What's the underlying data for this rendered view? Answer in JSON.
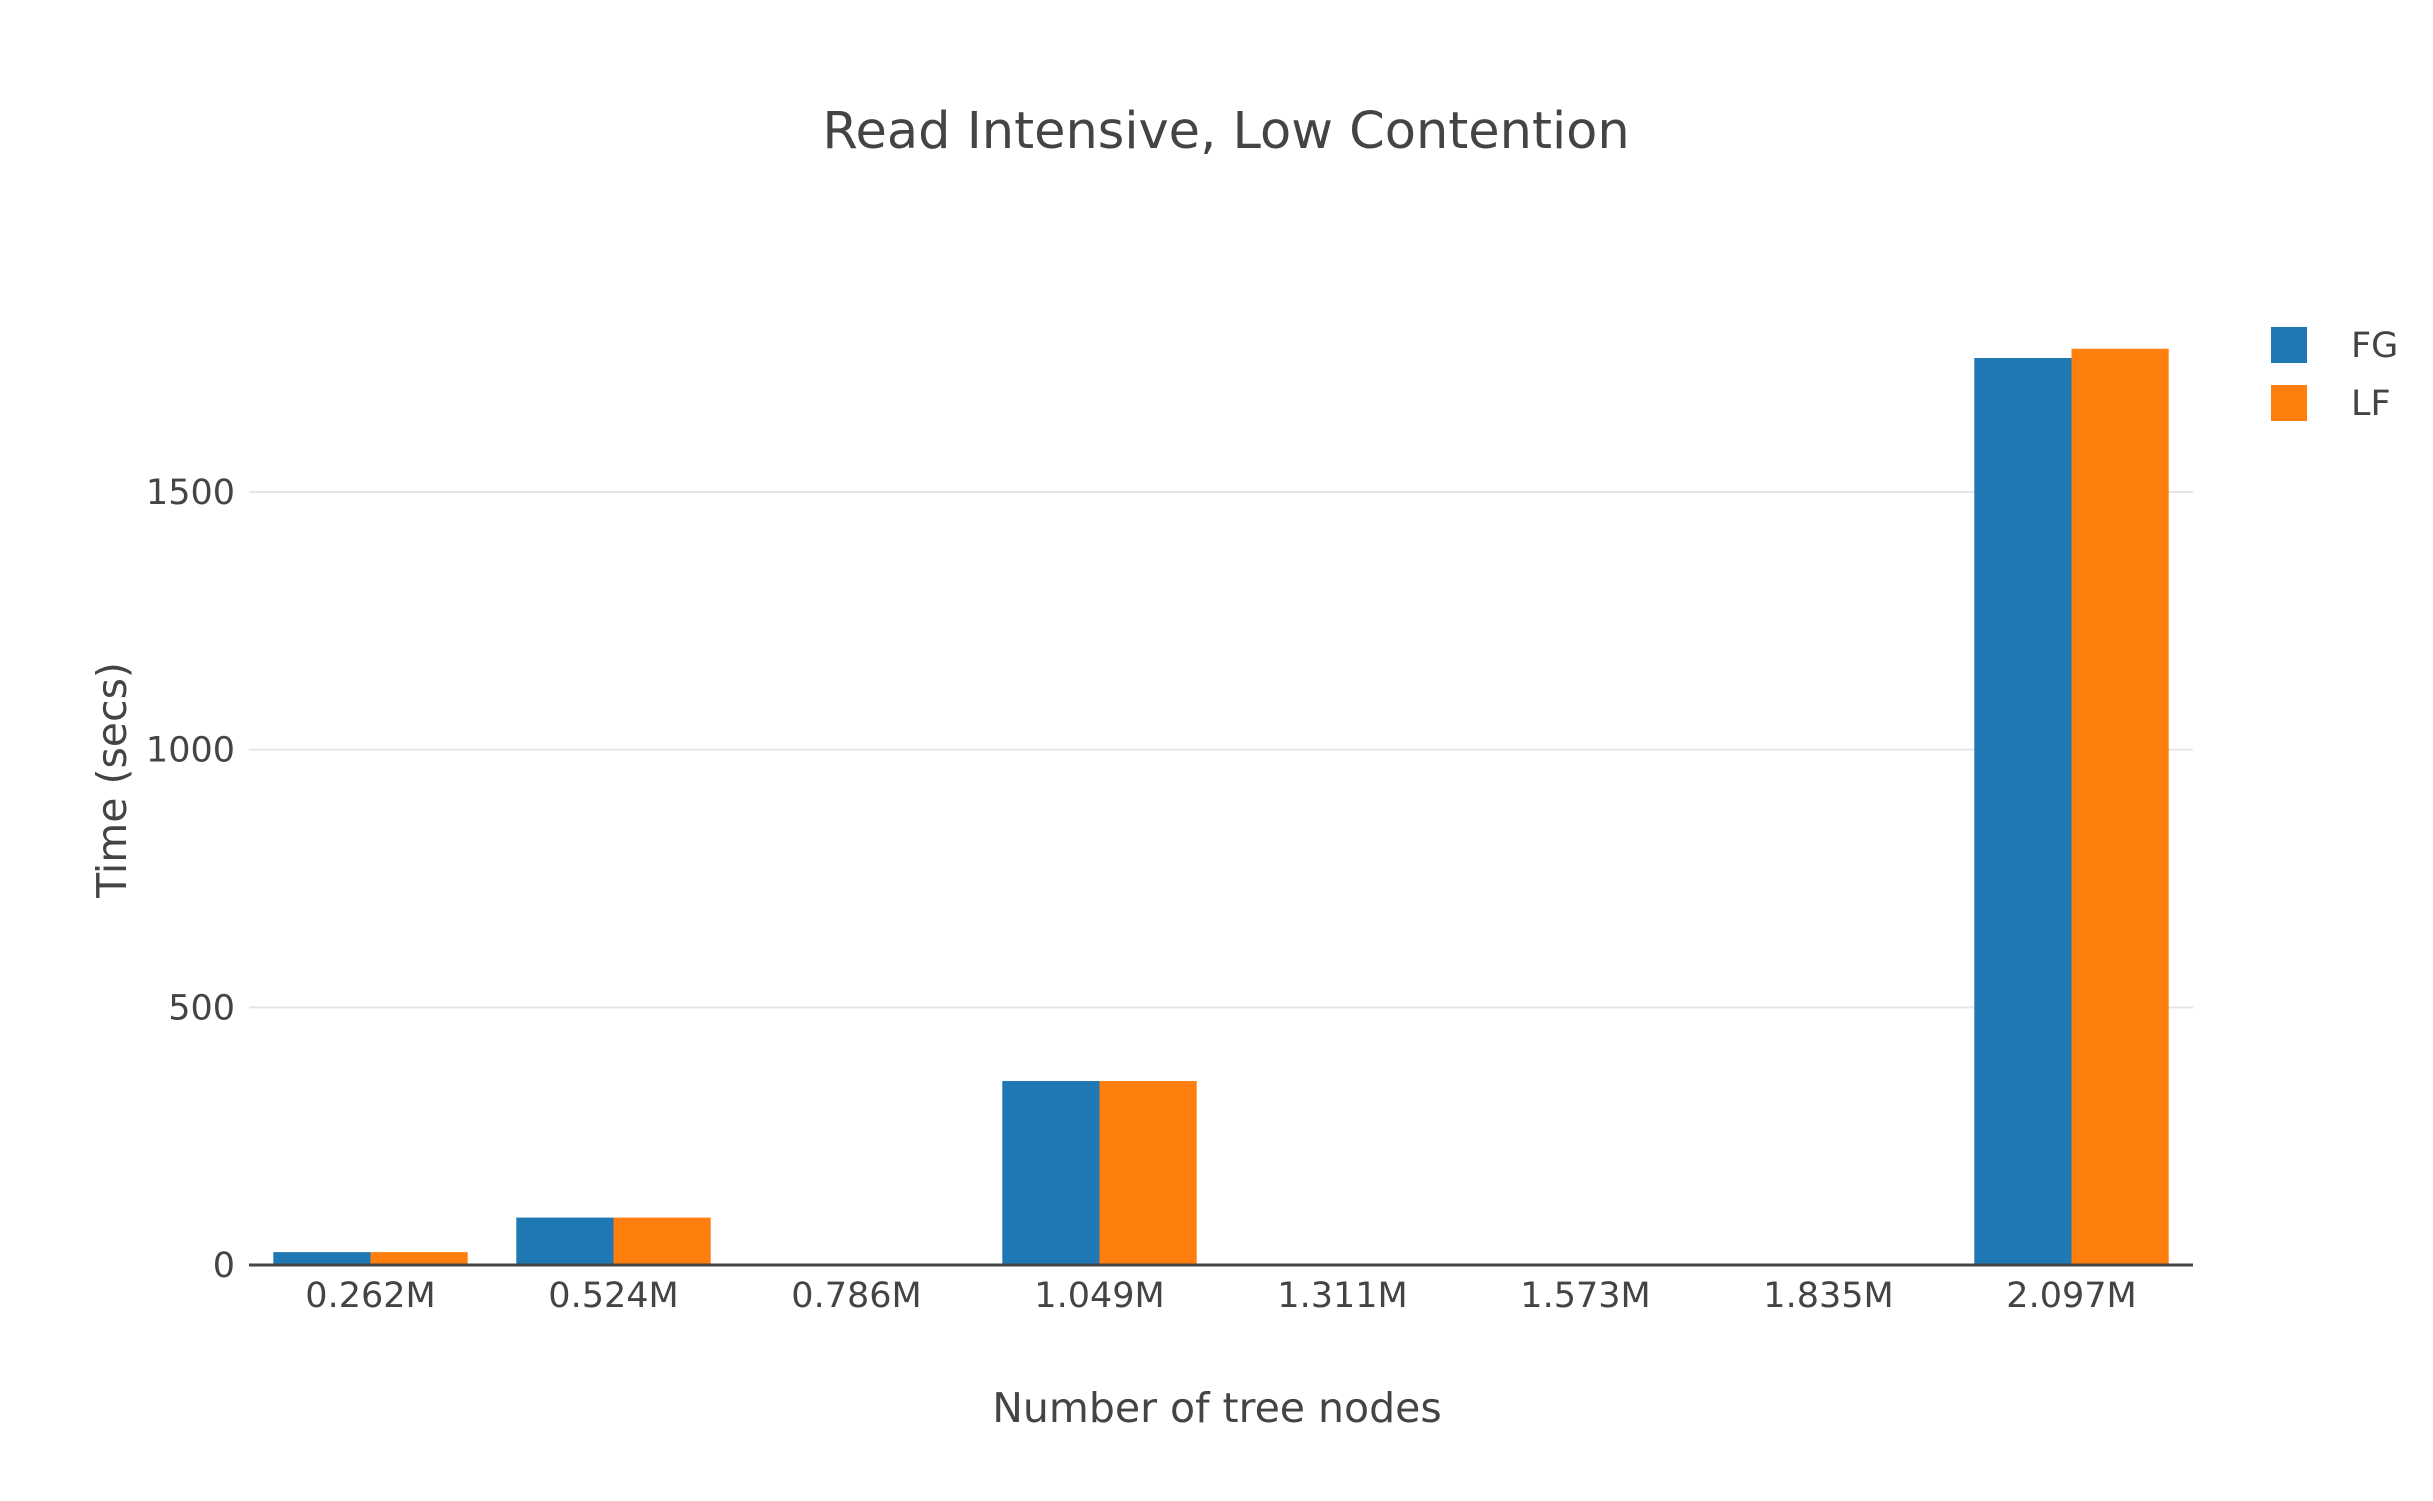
{
  "chart_data": {
    "type": "bar",
    "title": "Read Intensive, Low Contention",
    "xlabel": "Number of tree nodes",
    "ylabel": "Time (secs)",
    "categories": [
      "0.262M",
      "0.524M",
      "0.786M",
      "1.049M",
      "1.311M",
      "1.573M",
      "1.835M",
      "2.097M"
    ],
    "series": [
      {
        "name": "FG",
        "color": "#1f77b4",
        "values": [
          25,
          92,
          null,
          357,
          null,
          null,
          null,
          1760
        ]
      },
      {
        "name": "LF",
        "color": "#ff7f0e",
        "values": [
          25,
          92,
          null,
          357,
          null,
          null,
          null,
          1778
        ]
      }
    ],
    "ylim": [
      0,
      1900
    ],
    "yticks": [
      0,
      500,
      1000,
      1500
    ],
    "ytick_labels": [
      "0",
      "500",
      "1000",
      "1500"
    ],
    "grid": true,
    "legend_position": "top-right"
  }
}
